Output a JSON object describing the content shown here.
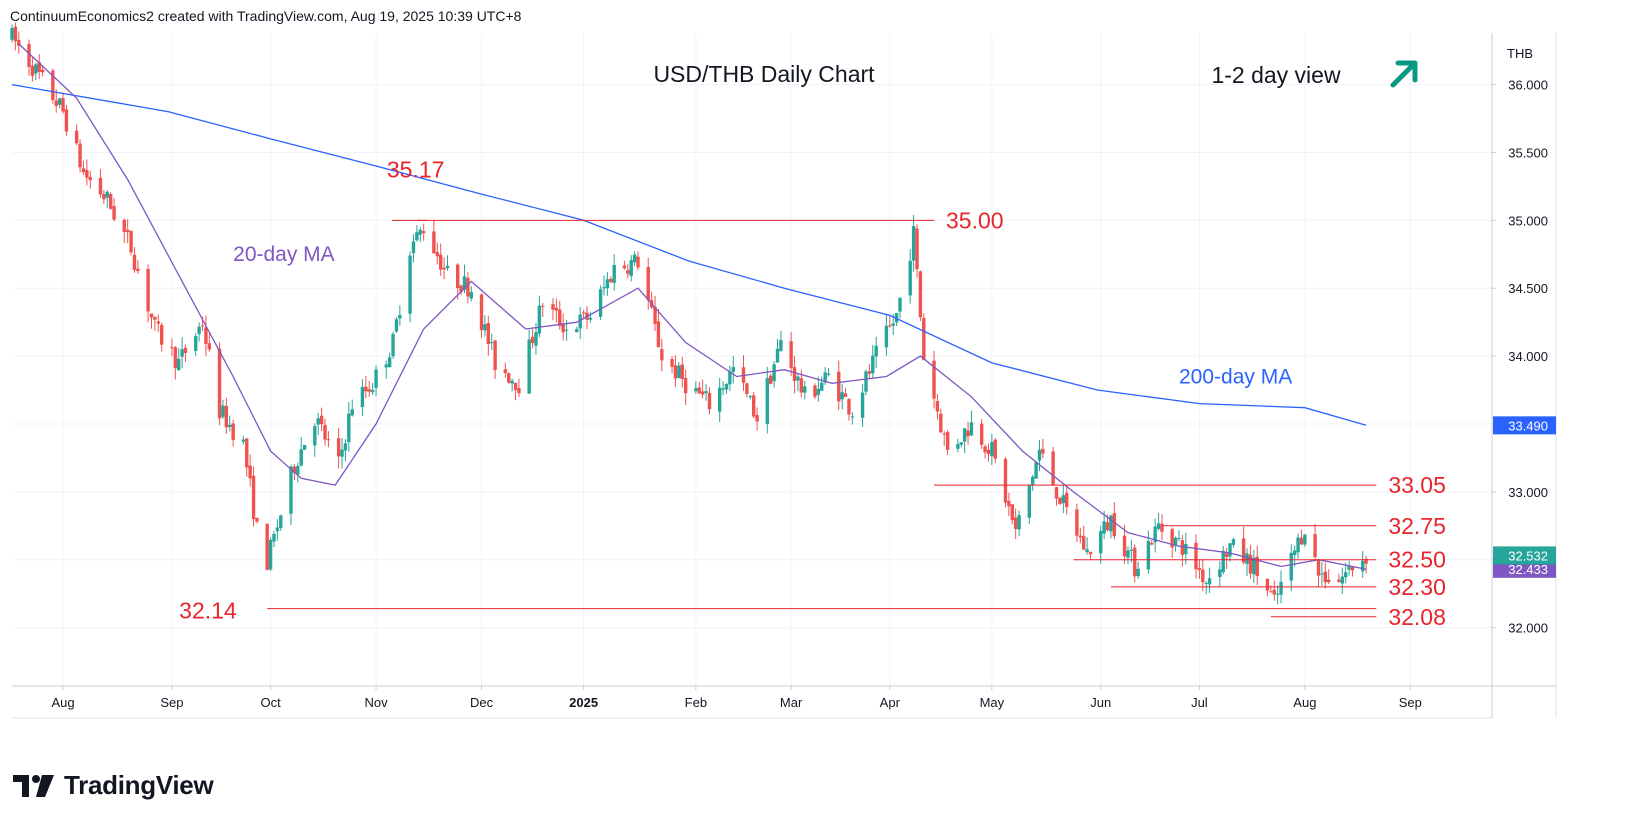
{
  "attribution": "ContinuumEconomics2 created with TradingView.com, Aug 19, 2025 10:39 UTC+8",
  "brand": "TradingView",
  "colors": {
    "up": "#26a69a",
    "down": "#ef5350",
    "ma20": "#7e57c2",
    "ma200": "#2962ff",
    "level": "#e8242c",
    "arrow": "#089981",
    "last_price_badge": "#2962ff",
    "ma20_badge": "#7e57c2"
  },
  "chart_data": {
    "type": "candlestick",
    "title": "USD/THB Daily Chart",
    "view_label": "1-2 day view",
    "view_direction": "up-arrow-icon",
    "currency": "THB",
    "y_ticks": [
      "36.000",
      "35.500",
      "35.000",
      "34.500",
      "34.000",
      "33.500",
      "33.000",
      "32.500",
      "32.000"
    ],
    "y_tick_values": [
      36.0,
      35.5,
      35.0,
      34.5,
      34.0,
      33.5,
      33.0,
      32.5,
      32.0
    ],
    "ylim": [
      31.57,
      36.38
    ],
    "x_ticks": [
      "Aug",
      "Sep",
      "Oct",
      "Nov",
      "Dec",
      "2025",
      "Feb",
      "Mar",
      "Apr",
      "May",
      "Jun",
      "Jul",
      "Aug",
      "Sep"
    ],
    "x_tick_dates": [
      "2024-08-01",
      "2024-09-02",
      "2024-10-01",
      "2024-11-01",
      "2024-12-02",
      "2025-01-01",
      "2025-02-03",
      "2025-03-03",
      "2025-04-01",
      "2025-05-01",
      "2025-06-02",
      "2025-07-01",
      "2025-08-01",
      "2025-09-01"
    ],
    "xlim": [
      "2024-07-17",
      "2025-09-25"
    ],
    "grid": true,
    "last_price": "32.532",
    "ma20_value": "32.433",
    "path_points": [
      {
        "date": "2024-07-17",
        "price": 36.35
      },
      {
        "date": "2024-07-24",
        "price": 36.1
      },
      {
        "date": "2024-08-01",
        "price": 35.8
      },
      {
        "date": "2024-08-07",
        "price": 35.35
      },
      {
        "date": "2024-08-14",
        "price": 35.15
      },
      {
        "date": "2024-08-21",
        "price": 34.8
      },
      {
        "date": "2024-08-28",
        "price": 34.2
      },
      {
        "date": "2024-09-04",
        "price": 33.95
      },
      {
        "date": "2024-09-11",
        "price": 34.25
      },
      {
        "date": "2024-09-16",
        "price": 33.6
      },
      {
        "date": "2024-09-23",
        "price": 33.35
      },
      {
        "date": "2024-09-29",
        "price": 32.4
      },
      {
        "date": "2024-10-03",
        "price": 32.75
      },
      {
        "date": "2024-10-08",
        "price": 33.2
      },
      {
        "date": "2024-10-14",
        "price": 33.55
      },
      {
        "date": "2024-10-21",
        "price": 33.2
      },
      {
        "date": "2024-10-25",
        "price": 33.65
      },
      {
        "date": "2024-10-31",
        "price": 33.8
      },
      {
        "date": "2024-11-06",
        "price": 34.1
      },
      {
        "date": "2024-11-11",
        "price": 34.8
      },
      {
        "date": "2024-11-15",
        "price": 34.95
      },
      {
        "date": "2024-11-22",
        "price": 34.6
      },
      {
        "date": "2024-11-29",
        "price": 34.5
      },
      {
        "date": "2024-12-06",
        "price": 33.95
      },
      {
        "date": "2024-12-13",
        "price": 33.8
      },
      {
        "date": "2024-12-20",
        "price": 34.4
      },
      {
        "date": "2024-12-27",
        "price": 34.2
      },
      {
        "date": "2025-01-03",
        "price": 34.3
      },
      {
        "date": "2025-01-10",
        "price": 34.65
      },
      {
        "date": "2025-01-17",
        "price": 34.7
      },
      {
        "date": "2025-01-24",
        "price": 34.0
      },
      {
        "date": "2025-01-31",
        "price": 33.8
      },
      {
        "date": "2025-02-07",
        "price": 33.65
      },
      {
        "date": "2025-02-14",
        "price": 33.9
      },
      {
        "date": "2025-02-21",
        "price": 33.55
      },
      {
        "date": "2025-02-28",
        "price": 34.1
      },
      {
        "date": "2025-03-07",
        "price": 33.7
      },
      {
        "date": "2025-03-14",
        "price": 33.85
      },
      {
        "date": "2025-03-21",
        "price": 33.6
      },
      {
        "date": "2025-03-28",
        "price": 34.0
      },
      {
        "date": "2025-04-03",
        "price": 34.3
      },
      {
        "date": "2025-04-08",
        "price": 34.9
      },
      {
        "date": "2025-04-11",
        "price": 34.0
      },
      {
        "date": "2025-04-18",
        "price": 33.3
      },
      {
        "date": "2025-04-25",
        "price": 33.5
      },
      {
        "date": "2025-05-01",
        "price": 33.3
      },
      {
        "date": "2025-05-08",
        "price": 32.7
      },
      {
        "date": "2025-05-15",
        "price": 33.3
      },
      {
        "date": "2025-05-22",
        "price": 32.9
      },
      {
        "date": "2025-05-29",
        "price": 32.55
      },
      {
        "date": "2025-06-05",
        "price": 32.8
      },
      {
        "date": "2025-06-12",
        "price": 32.45
      },
      {
        "date": "2025-06-19",
        "price": 32.75
      },
      {
        "date": "2025-06-26",
        "price": 32.6
      },
      {
        "date": "2025-07-03",
        "price": 32.35
      },
      {
        "date": "2025-07-10",
        "price": 32.6
      },
      {
        "date": "2025-07-17",
        "price": 32.45
      },
      {
        "date": "2025-07-23",
        "price": 32.18
      },
      {
        "date": "2025-07-28",
        "price": 32.5
      },
      {
        "date": "2025-08-01",
        "price": 32.75
      },
      {
        "date": "2025-08-05",
        "price": 32.4
      },
      {
        "date": "2025-08-11",
        "price": 32.35
      },
      {
        "date": "2025-08-15",
        "price": 32.45
      },
      {
        "date": "2025-08-19",
        "price": 32.53
      }
    ],
    "ma20_points": [
      {
        "date": "2024-07-19",
        "price": 36.3
      },
      {
        "date": "2024-08-05",
        "price": 35.9
      },
      {
        "date": "2024-08-20",
        "price": 35.3
      },
      {
        "date": "2024-09-05",
        "price": 34.55
      },
      {
        "date": "2024-09-20",
        "price": 33.85
      },
      {
        "date": "2024-10-01",
        "price": 33.3
      },
      {
        "date": "2024-10-10",
        "price": 33.1
      },
      {
        "date": "2024-10-20",
        "price": 33.05
      },
      {
        "date": "2024-11-01",
        "price": 33.5
      },
      {
        "date": "2024-11-15",
        "price": 34.2
      },
      {
        "date": "2024-11-29",
        "price": 34.55
      },
      {
        "date": "2024-12-15",
        "price": 34.2
      },
      {
        "date": "2024-12-30",
        "price": 34.25
      },
      {
        "date": "2025-01-17",
        "price": 34.5
      },
      {
        "date": "2025-01-31",
        "price": 34.1
      },
      {
        "date": "2025-02-15",
        "price": 33.85
      },
      {
        "date": "2025-03-01",
        "price": 33.9
      },
      {
        "date": "2025-03-15",
        "price": 33.8
      },
      {
        "date": "2025-03-31",
        "price": 33.85
      },
      {
        "date": "2025-04-10",
        "price": 34.0
      },
      {
        "date": "2025-04-25",
        "price": 33.7
      },
      {
        "date": "2025-05-10",
        "price": 33.3
      },
      {
        "date": "2025-05-25",
        "price": 33.0
      },
      {
        "date": "2025-06-10",
        "price": 32.7
      },
      {
        "date": "2025-06-25",
        "price": 32.6
      },
      {
        "date": "2025-07-10",
        "price": 32.55
      },
      {
        "date": "2025-07-25",
        "price": 32.45
      },
      {
        "date": "2025-08-05",
        "price": 32.5
      },
      {
        "date": "2025-08-19",
        "price": 32.43
      }
    ],
    "ma200_points": [
      {
        "date": "2024-07-17",
        "price": 36.0
      },
      {
        "date": "2024-09-01",
        "price": 35.8
      },
      {
        "date": "2024-10-01",
        "price": 35.6
      },
      {
        "date": "2024-11-01",
        "price": 35.4
      },
      {
        "date": "2024-12-01",
        "price": 35.2
      },
      {
        "date": "2025-01-01",
        "price": 35.0
      },
      {
        "date": "2025-02-01",
        "price": 34.7
      },
      {
        "date": "2025-03-01",
        "price": 34.5
      },
      {
        "date": "2025-04-01",
        "price": 34.3
      },
      {
        "date": "2025-05-01",
        "price": 33.95
      },
      {
        "date": "2025-06-01",
        "price": 33.75
      },
      {
        "date": "2025-07-01",
        "price": 33.65
      },
      {
        "date": "2025-08-01",
        "price": 33.62
      },
      {
        "date": "2025-08-19",
        "price": 33.49
      }
    ],
    "series_labels": [
      {
        "name": "20-day MA",
        "date": "2024-09-20",
        "price": 34.7
      },
      {
        "name": "200-day MA",
        "date": "2025-06-25",
        "price": 33.8
      }
    ],
    "levels": [
      {
        "label": "35.00",
        "value": 35.0,
        "from": "2024-11-13",
        "to": "2025-04-14"
      },
      {
        "label": "33.05",
        "value": 33.05,
        "from": "2025-04-14",
        "to": "2025-08-22"
      },
      {
        "label": "32.75",
        "value": 32.75,
        "from": "2025-06-20",
        "to": "2025-08-22"
      },
      {
        "label": "32.50",
        "value": 32.5,
        "from": "2025-05-25",
        "to": "2025-08-22"
      },
      {
        "label": "32.30",
        "value": 32.3,
        "from": "2025-06-05",
        "to": "2025-08-22"
      },
      {
        "label": "32.08",
        "value": 32.08,
        "from": "2025-07-22",
        "to": "2025-08-22"
      }
    ],
    "extremes": [
      {
        "label": "35.17",
        "date": "2024-11-13",
        "price": 35.17
      },
      {
        "label": "32.14",
        "date": "2024-09-30",
        "price": 32.14
      }
    ]
  }
}
